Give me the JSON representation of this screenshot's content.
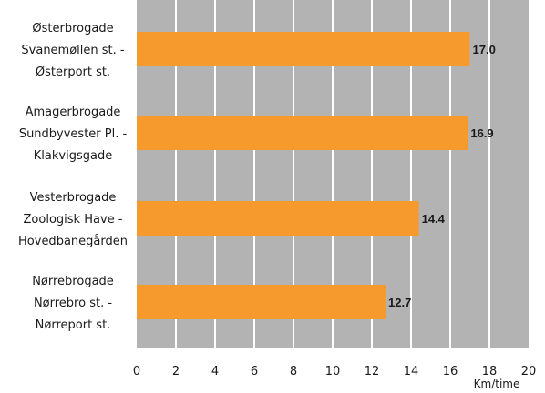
{
  "chart_data": {
    "type": "bar",
    "orientation": "horizontal",
    "categories": [
      [
        "Østerbrogade",
        "Svanemøllen st. -",
        "Østerport st."
      ],
      [
        "Amagerbrogade",
        "Sundbyvester Pl. -",
        "Klakvigsgade"
      ],
      [
        "Vesterbrogade",
        "Zoologisk Have -",
        "Hovedbanegården"
      ],
      [
        "Nørrebrogade",
        "Nørrebro st. -",
        "Nørreport st."
      ]
    ],
    "values": [
      17.0,
      16.9,
      14.4,
      12.7
    ],
    "value_labels": [
      "17.0",
      "16.9",
      "14.4",
      "12.7"
    ],
    "xlim": [
      0,
      20
    ],
    "x_ticks": [
      "0",
      "2",
      "4",
      "6",
      "8",
      "10",
      "12",
      "14",
      "16",
      "18",
      "20"
    ],
    "xlabel": "Km/time",
    "grid": true,
    "colors": {
      "bar": "#f79a2e",
      "plot_background": "#b3b3b3",
      "grid": "#ffffff"
    }
  }
}
